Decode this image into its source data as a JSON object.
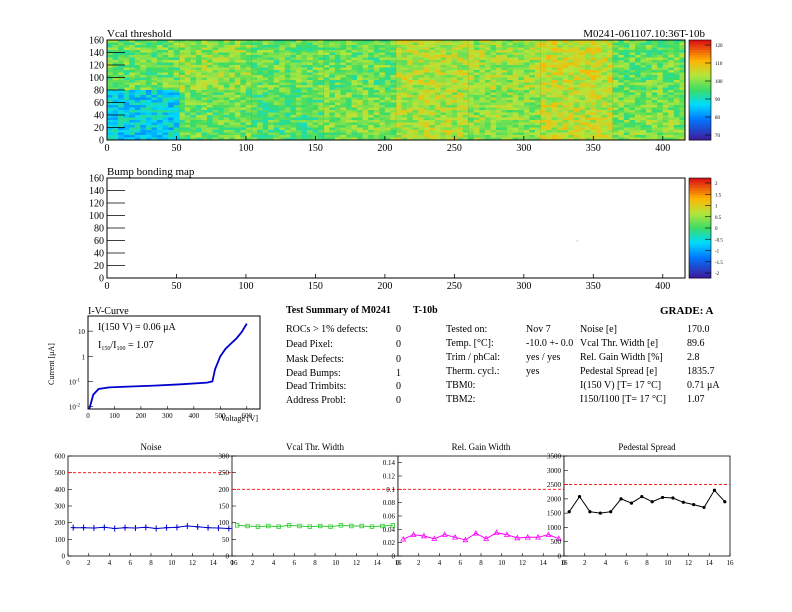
{
  "header": {
    "vcal_title": "Vcal threshold",
    "module_id": "M0241-061107.10:36T-10b",
    "bump_title": "Bump bonding map"
  },
  "iv": {
    "title": "I-V-Curve",
    "ylabel": "Current [μA]",
    "xlabel": "Voltage [V]",
    "i150_label": "I(150 V) = 0.06 μA",
    "ratio_label": "I150/I100 = 1.07"
  },
  "summary": {
    "title": "Test Summary of M0241",
    "temp_id": "T-10b",
    "grade": "GRADE:  A",
    "defects": [
      {
        "label": "ROCs > 1% defects:",
        "value": "0"
      },
      {
        "label": "Dead Pixel:",
        "value": "0"
      },
      {
        "label": "Mask Defects:",
        "value": "0"
      },
      {
        "label": "Dead Bumps:",
        "value": "1"
      },
      {
        "label": "Dead Trimbits:",
        "value": "0"
      },
      {
        "label": "Address Probl:",
        "value": "0"
      }
    ],
    "conditions": [
      {
        "label": "Tested on:",
        "value": "Nov 7"
      },
      {
        "label": "Temp. [°C]:",
        "value": "-10.0 +- 0.0"
      },
      {
        "label": "Trim / phCal:",
        "value": "yes / yes"
      },
      {
        "label": "Therm. cycl.:",
        "value": "yes"
      },
      {
        "label": "TBM0:",
        "value": ""
      },
      {
        "label": "TBM2:",
        "value": ""
      }
    ],
    "results": [
      {
        "label": "Noise [e]",
        "value": "170.0"
      },
      {
        "label": "Vcal Thr. Width [e]",
        "value": "89.6"
      },
      {
        "label": "Rel. Gain Width [%]",
        "value": "2.8"
      },
      {
        "label": "Pedestal Spread [e]",
        "value": "1835.7"
      },
      {
        "label": "I(150 V) [T= 17 °C]",
        "value": "0.71 μA"
      },
      {
        "label": "I150/I100 [T= 17 °C]",
        "value": "1.07"
      }
    ]
  },
  "colors": {
    "noise": "#0000cc",
    "vcal": "#33cc33",
    "gain": "#ff00ff",
    "pedestal": "#000000",
    "limit": "#ff0000",
    "iv": "#0000cc"
  },
  "chart_data": [
    {
      "type": "heatmap",
      "title": "Vcal threshold",
      "xlim": [
        0,
        416
      ],
      "ylim": [
        0,
        160
      ],
      "xticks": [
        "0",
        "50",
        "100",
        "150",
        "200",
        "250",
        "300",
        "350",
        "400"
      ],
      "yticks": [
        "0",
        "20",
        "40",
        "60",
        "80",
        "100",
        "120",
        "140",
        "160"
      ],
      "roc_layout": "2 rows x 8 columns of 52x80 pixel chips",
      "roc_mean_shade": [
        [
          0.55,
          0.6,
          0.55,
          0.55,
          0.65,
          0.62,
          0.68,
          0.55
        ],
        [
          0.35,
          0.55,
          0.52,
          0.58,
          0.64,
          0.6,
          0.66,
          0.58
        ]
      ],
      "colorbar_ticks": [
        "120",
        "110",
        "100",
        "90",
        "80",
        "70"
      ]
    },
    {
      "type": "heatmap",
      "title": "Bump bonding map",
      "xlim": [
        0,
        416
      ],
      "ylim": [
        0,
        160
      ],
      "xticks": [
        "0",
        "50",
        "100",
        "150",
        "200",
        "250",
        "300",
        "350",
        "400"
      ],
      "yticks": [
        "0",
        "20",
        "40",
        "60",
        "80",
        "100",
        "120",
        "140",
        "160"
      ],
      "entries": [
        {
          "x": 338,
          "y": 61
        }
      ],
      "colorbar_ticks": [
        "2",
        "1.5",
        "1",
        "0.5",
        "0",
        "-0.5",
        "-1",
        "-1.5",
        "-2"
      ]
    },
    {
      "type": "line",
      "title": "I-V-Curve",
      "xlabel": "Voltage [V]",
      "ylabel": "Current [μA]",
      "xlim": [
        0,
        650
      ],
      "ylim": [
        0.008,
        40
      ],
      "log_y": true,
      "xticks": [
        "0",
        "100",
        "200",
        "300",
        "400",
        "500",
        "600"
      ],
      "x": [
        5,
        20,
        40,
        80,
        150,
        250,
        350,
        450,
        470,
        480,
        500,
        520,
        540,
        560,
        580,
        600
      ],
      "y": [
        0.008,
        0.03,
        0.05,
        0.058,
        0.062,
        0.068,
        0.077,
        0.09,
        0.1,
        0.3,
        1.0,
        2.0,
        3.2,
        5.0,
        9.0,
        20.0
      ]
    },
    {
      "type": "line",
      "title": "Noise",
      "xlim": [
        0,
        16
      ],
      "ylim": [
        0,
        600
      ],
      "xticks": [
        "0",
        "2",
        "4",
        "6",
        "8",
        "10",
        "12",
        "14",
        "16"
      ],
      "yticks": [
        "0",
        "100",
        "200",
        "300",
        "400",
        "500",
        "600"
      ],
      "limit": 500,
      "x": [
        0.5,
        1.5,
        2.5,
        3.5,
        4.5,
        5.5,
        6.5,
        7.5,
        8.5,
        9.5,
        10.5,
        11.5,
        12.5,
        13.5,
        14.5,
        15.5
      ],
      "y": [
        170,
        170,
        168,
        172,
        165,
        170,
        168,
        172,
        165,
        170,
        172,
        180,
        175,
        170,
        168,
        165
      ]
    },
    {
      "type": "line",
      "title": "Vcal Thr. Width",
      "xlim": [
        0,
        16
      ],
      "ylim": [
        0,
        300
      ],
      "xticks": [
        "0",
        "2",
        "4",
        "6",
        "8",
        "10",
        "12",
        "14",
        "16"
      ],
      "yticks": [
        "0",
        "50",
        "100",
        "150",
        "200",
        "250",
        "300"
      ],
      "limit": 200,
      "x": [
        0.5,
        1.5,
        2.5,
        3.5,
        4.5,
        5.5,
        6.5,
        7.5,
        8.5,
        9.5,
        10.5,
        11.5,
        12.5,
        13.5,
        14.5,
        15.5
      ],
      "y": [
        92,
        90,
        88,
        90,
        88,
        92,
        90,
        88,
        90,
        88,
        92,
        90,
        90,
        88,
        90,
        92
      ]
    },
    {
      "type": "line",
      "title": "Rel. Gain Width",
      "xlim": [
        0,
        16
      ],
      "ylim": [
        0,
        0.15
      ],
      "xticks": [
        "0",
        "2",
        "4",
        "6",
        "8",
        "10",
        "12",
        "14",
        "16"
      ],
      "yticks": [
        "0",
        "0.02",
        "0.04",
        "0.06",
        "0.08",
        "0.1",
        "0.12",
        "0.14"
      ],
      "limit": 0.1,
      "x": [
        0.5,
        1.5,
        2.5,
        3.5,
        4.5,
        5.5,
        6.5,
        7.5,
        8.5,
        9.5,
        10.5,
        11.5,
        12.5,
        13.5,
        14.5,
        15.5
      ],
      "y": [
        0.025,
        0.032,
        0.03,
        0.026,
        0.032,
        0.028,
        0.024,
        0.034,
        0.026,
        0.035,
        0.032,
        0.027,
        0.028,
        0.028,
        0.032,
        0.026
      ]
    },
    {
      "type": "line",
      "title": "Pedestal Spread",
      "xlim": [
        0,
        16
      ],
      "ylim": [
        0,
        3500
      ],
      "xticks": [
        "0",
        "2",
        "4",
        "6",
        "8",
        "10",
        "12",
        "14",
        "16"
      ],
      "yticks": [
        "0",
        "500",
        "1000",
        "1500",
        "2000",
        "2500",
        "3000",
        "3500"
      ],
      "limit": 2500,
      "x": [
        0.5,
        1.5,
        2.5,
        3.5,
        4.5,
        5.5,
        6.5,
        7.5,
        8.5,
        9.5,
        10.5,
        11.5,
        12.5,
        13.5,
        14.5,
        15.5
      ],
      "y": [
        1550,
        2080,
        1550,
        1500,
        1550,
        2000,
        1850,
        2080,
        1900,
        2050,
        2030,
        1880,
        1800,
        1700,
        2300,
        1900
      ]
    }
  ]
}
